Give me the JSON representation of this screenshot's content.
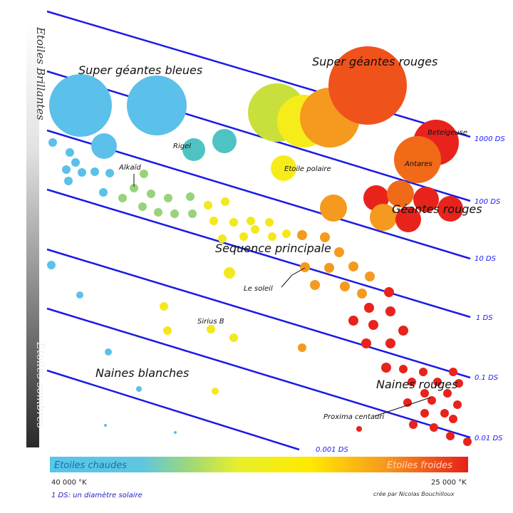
{
  "regions": {
    "blue_supergiants": "Super géantes bleues",
    "red_supergiants": "Super géantes rouges",
    "red_giants": "Géantes rouges",
    "main_sequence": "Sequence principale",
    "white_dwarfs": "Naines blanches",
    "red_dwarfs": "Naines rouges"
  },
  "stars": {
    "betelgeuse": "Betelgeuse",
    "antares": "Antares",
    "rigel": "Rigel",
    "polaris": "Etoile polaire",
    "alkaid": "Alkaïd",
    "sun": "Le soleil",
    "sirius_b": "Sirius B",
    "proxima": "Proxima centauri"
  },
  "diameter_lines": [
    "1000 DS",
    "100 DS",
    "10 DS",
    "1 DS",
    "0.1 DS",
    "0.01 DS",
    "0.001 DS"
  ],
  "luminosity_axis": {
    "top": "Etoiles Brillantes",
    "bottom": "Etoiles sombres"
  },
  "temperature_axis": {
    "hot": "Etoiles chaudes",
    "cold": "Etoiles froides",
    "left_value": "40 000 °K",
    "right_value": "25 000 °K"
  },
  "footnote": "1 DS: un diamètre solaire",
  "credit": "crée par Nicolas Bouchilloux",
  "colors": {
    "line": "#1a1ae6",
    "blue": "#5bc0ea",
    "teal": "#4fc3c3",
    "green": "#99d27a",
    "yellow": "#f3e81c",
    "orange": "#f59a1e",
    "red": "#e8231c"
  }
}
